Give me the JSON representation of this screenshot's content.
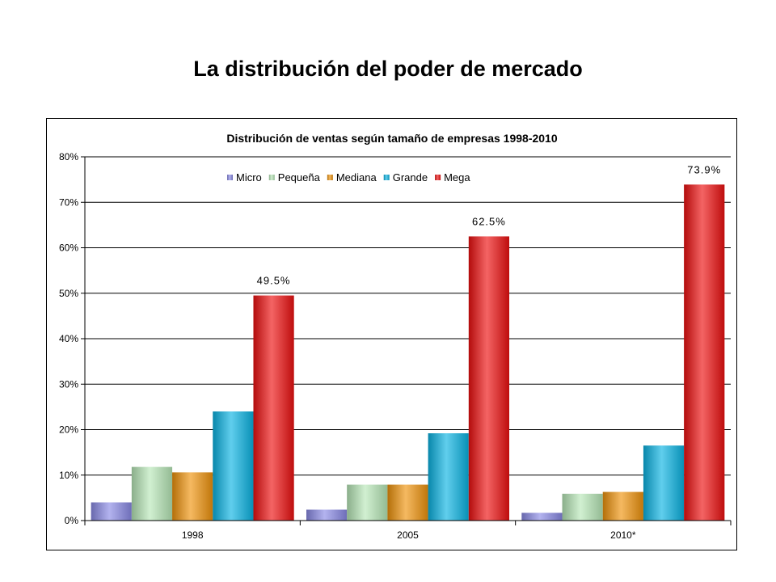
{
  "slide": {
    "title": "La distribución del poder de mercado"
  },
  "chart_data": {
    "type": "bar",
    "title": "Distribución de ventas según tamaño de empresas 1998-2010",
    "categories": [
      "1998",
      "2005",
      "2010*"
    ],
    "series": [
      {
        "name": "Micro",
        "values": [
          4.0,
          2.4,
          1.7
        ],
        "color": "#8a8ae6"
      },
      {
        "name": "Pequeña",
        "values": [
          11.8,
          7.9,
          5.9
        ],
        "color": "#b8e8b8"
      },
      {
        "name": "Mediana",
        "values": [
          10.6,
          7.9,
          6.3
        ],
        "color": "#f0940c"
      },
      {
        "name": "Grande",
        "values": [
          24.0,
          19.2,
          16.5
        ],
        "color": "#0ab4e4"
      },
      {
        "name": "Mega",
        "values": [
          49.5,
          62.5,
          73.9
        ],
        "color": "#ee1010"
      }
    ],
    "data_labels": [
      {
        "series": "Mega",
        "category": "1998",
        "text": "49.5%"
      },
      {
        "series": "Mega",
        "category": "2005",
        "text": "62.5%"
      },
      {
        "series": "Mega",
        "category": "2010*",
        "text": "73.9%"
      }
    ],
    "y_ticks": [
      "0%",
      "10%",
      "20%",
      "30%",
      "40%",
      "50%",
      "60%",
      "70%",
      "80%"
    ],
    "ylim": [
      0,
      80
    ],
    "grid": true,
    "legend_position": "top-center",
    "xlabel": "",
    "ylabel": ""
  }
}
